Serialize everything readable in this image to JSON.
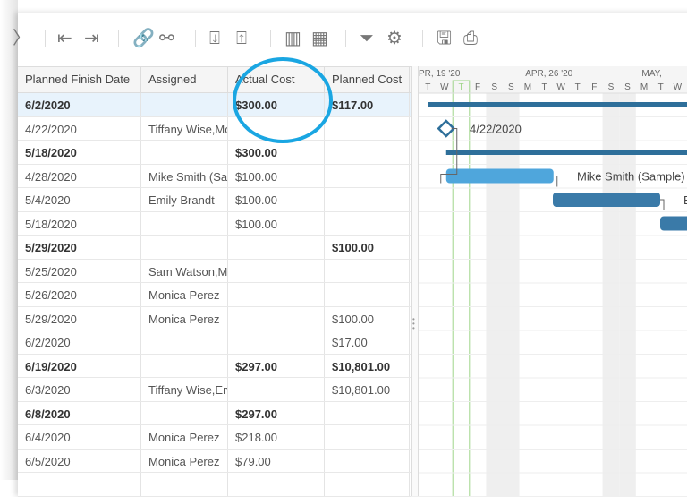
{
  "toolbar": {
    "icons": [
      "chevron-right-icon",
      "outdent-icon",
      "indent-icon",
      "link-icon",
      "unlink-icon",
      "import-icon",
      "export-icon",
      "columns-icon",
      "table-icon",
      "filter-icon",
      "gear-icon",
      "save-icon",
      "print-icon"
    ]
  },
  "grid": {
    "columns": [
      "Planned Finish Date",
      "Assigned",
      "Actual Cost",
      "Planned Cost"
    ],
    "rows": [
      {
        "finish": "6/2/2020",
        "assigned": "",
        "actual": "$300.00",
        "planned": "$117.00",
        "bold": true,
        "selected": true
      },
      {
        "finish": "4/22/2020",
        "assigned": "Tiffany Wise,Mo",
        "actual": "",
        "planned": "",
        "bold": false
      },
      {
        "finish": "5/18/2020",
        "assigned": "",
        "actual": "$300.00",
        "planned": "",
        "bold": true
      },
      {
        "finish": "4/28/2020",
        "assigned": "Mike Smith (Sam",
        "actual": "$100.00",
        "planned": "",
        "bold": false
      },
      {
        "finish": "5/4/2020",
        "assigned": "Emily Brandt",
        "actual": "$100.00",
        "planned": "",
        "bold": false
      },
      {
        "finish": "5/18/2020",
        "assigned": "",
        "actual": "$100.00",
        "planned": "",
        "bold": false
      },
      {
        "finish": "5/29/2020",
        "assigned": "",
        "actual": "",
        "planned": "$100.00",
        "bold": true
      },
      {
        "finish": "5/25/2020",
        "assigned": "Sam Watson,Mo",
        "actual": "",
        "planned": "",
        "bold": false
      },
      {
        "finish": "5/26/2020",
        "assigned": "Monica Perez",
        "actual": "",
        "planned": "",
        "bold": false
      },
      {
        "finish": "5/29/2020",
        "assigned": "Monica Perez",
        "actual": "",
        "planned": "$100.00",
        "bold": false
      },
      {
        "finish": "6/2/2020",
        "assigned": "",
        "actual": "",
        "planned": "$17.00",
        "bold": false
      },
      {
        "finish": "6/19/2020",
        "assigned": "",
        "actual": "$297.00",
        "planned": "$10,801.00",
        "bold": true
      },
      {
        "finish": "6/3/2020",
        "assigned": "Tiffany Wise,Em",
        "actual": "",
        "planned": "$10,801.00",
        "bold": false
      },
      {
        "finish": "6/8/2020",
        "assigned": "",
        "actual": "$297.00",
        "planned": "",
        "bold": true
      },
      {
        "finish": "6/4/2020",
        "assigned": "Monica Perez",
        "actual": "$218.00",
        "planned": "",
        "bold": false
      },
      {
        "finish": "6/5/2020",
        "assigned": "Monica Perez",
        "actual": "$79.00",
        "planned": "",
        "bold": false
      },
      {
        "finish": "",
        "assigned": "",
        "actual": "",
        "planned": "",
        "bold": false
      }
    ]
  },
  "gantt": {
    "weeks": [
      "PR, 19 '20",
      "APR, 26 '20",
      "MAY,"
    ],
    "days": [
      "T",
      "W",
      "T",
      "F",
      "S",
      "S",
      "M",
      "T",
      "W",
      "T",
      "F",
      "S",
      "S",
      "M",
      "T",
      "W",
      "T"
    ],
    "today_index": 2,
    "milestone_label": "4/22/2020",
    "bar_labels": [
      "Mike Smith (Sample)",
      "E"
    ],
    "colors": {
      "summary": "#2e6f9a",
      "task_light": "#4fa6dc",
      "task_dark": "#3a7aa8",
      "today": "#9fd58a",
      "highlight": "#1aa6e2"
    }
  }
}
